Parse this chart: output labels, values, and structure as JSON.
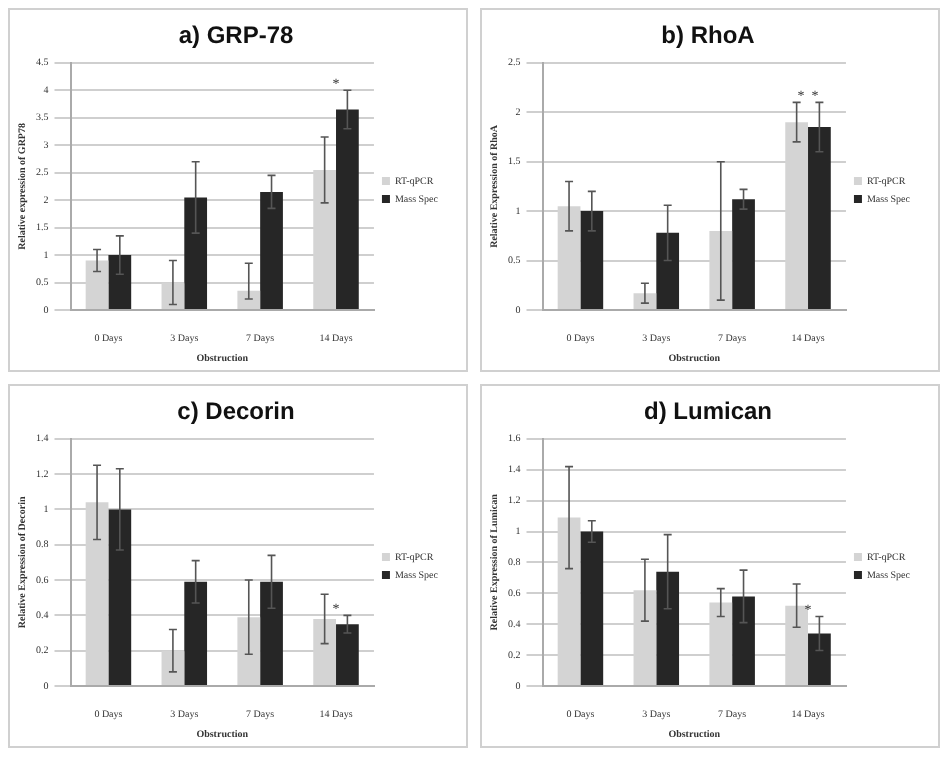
{
  "chart_data": [
    {
      "type": "bar",
      "title": "a) GRP-78",
      "xlabel": "Obstruction",
      "ylabel": "Relative expression of GRP78",
      "categories": [
        "0 Days",
        "3 Days",
        "7 Days",
        "14 Days"
      ],
      "series": [
        {
          "name": "RT-qPCR",
          "color": "#d4d4d4",
          "values": [
            0.9,
            0.5,
            0.35,
            2.55
          ],
          "errors": [
            0.2,
            0.4,
            [
              0.2,
              0.85
            ],
            0.6
          ]
        },
        {
          "name": "Mass Spec",
          "color": "#262626",
          "values": [
            1.0,
            2.05,
            2.15,
            3.65
          ],
          "errors": [
            0.35,
            0.65,
            0.3,
            0.35
          ]
        }
      ],
      "ylim": [
        0,
        4.5
      ],
      "yticks": [
        0,
        0.5,
        1,
        1.5,
        2,
        2.5,
        3,
        3.5,
        4,
        4.5
      ],
      "grid": "y",
      "legend": "right",
      "annotations": [
        {
          "text": "*",
          "x": "14 Days",
          "y": 4.0
        }
      ]
    },
    {
      "type": "bar",
      "title": "b) RhoA",
      "xlabel": "Obstruction",
      "ylabel": "Relative Expression of RhoA",
      "categories": [
        "0 Days",
        "3 Days",
        "7 Days",
        "14 Days"
      ],
      "series": [
        {
          "name": "RT-qPCR",
          "color": "#d4d4d4",
          "values": [
            1.05,
            0.17,
            0.8,
            1.9
          ],
          "errors": [
            0.25,
            0.1,
            0.7,
            0.2
          ]
        },
        {
          "name": "Mass Spec",
          "color": "#262626",
          "values": [
            1.0,
            0.78,
            1.12,
            1.85
          ],
          "errors": [
            0.2,
            0.28,
            0.1,
            0.25
          ]
        }
      ],
      "ylim": [
        0,
        2.5
      ],
      "yticks": [
        0,
        0.5,
        1,
        1.5,
        2,
        2.5
      ],
      "grid": "y",
      "legend": "right",
      "annotations": [
        {
          "text": "*  *",
          "x": "14 Days",
          "y": 2.1
        }
      ]
    },
    {
      "type": "bar",
      "title": "c) Decorin",
      "xlabel": "Obstruction",
      "ylabel": "Relative Expression of Decorin",
      "categories": [
        "0 Days",
        "3 Days",
        "7 Days",
        "14 Days"
      ],
      "series": [
        {
          "name": "RT-qPCR",
          "color": "#d4d4d4",
          "values": [
            1.04,
            0.2,
            0.39,
            0.38
          ],
          "errors": [
            0.21,
            0.12,
            0.21,
            0.14
          ]
        },
        {
          "name": "Mass Spec",
          "color": "#262626",
          "values": [
            1.0,
            0.59,
            0.59,
            0.35
          ],
          "errors": [
            0.23,
            0.12,
            0.15,
            0.05
          ]
        }
      ],
      "ylim": [
        0,
        1.4
      ],
      "yticks": [
        0,
        0.2,
        0.4,
        0.6,
        0.8,
        1,
        1.2,
        1.4
      ],
      "grid": "y",
      "legend": "right",
      "annotations": [
        {
          "text": "*",
          "x": "14 Days",
          "y": 0.4
        }
      ]
    },
    {
      "type": "bar",
      "title": "d) Lumican",
      "xlabel": "Obstruction",
      "ylabel": "Relative Expression of Lumican",
      "categories": [
        "0 Days",
        "3 Days",
        "7 Days",
        "14 Days"
      ],
      "series": [
        {
          "name": "RT-qPCR",
          "color": "#d4d4d4",
          "values": [
            1.09,
            0.62,
            0.54,
            0.52
          ],
          "errors": [
            0.33,
            0.2,
            0.09,
            0.14
          ]
        },
        {
          "name": "Mass Spec",
          "color": "#262626",
          "values": [
            1.0,
            0.74,
            0.58,
            0.34
          ],
          "errors": [
            0.07,
            0.24,
            0.17,
            0.11
          ]
        }
      ],
      "ylim": [
        0,
        1.6
      ],
      "yticks": [
        0,
        0.2,
        0.4,
        0.6,
        0.8,
        1,
        1.2,
        1.4,
        1.6
      ],
      "grid": "y",
      "legend": "right",
      "annotations": [
        {
          "text": "*",
          "x": "14 Days",
          "y": 0.45
        }
      ]
    }
  ]
}
